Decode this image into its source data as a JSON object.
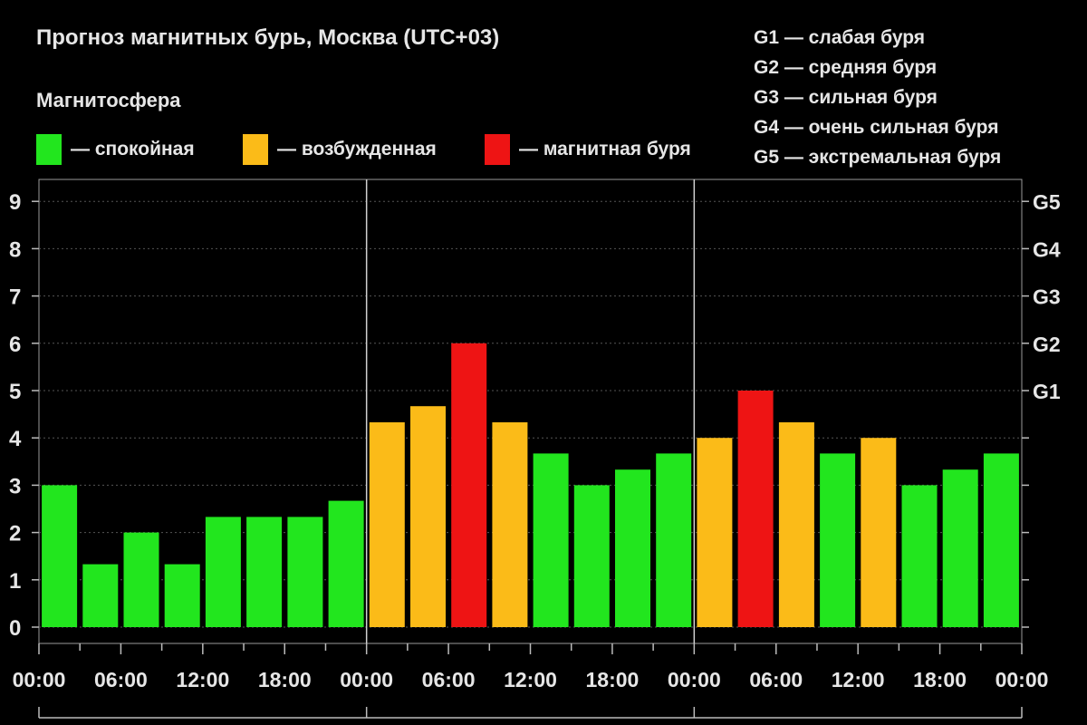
{
  "header": {
    "title": "Прогноз магнитных бурь, Москва (UTC+03)",
    "legend_title": "Магнитосфера"
  },
  "legend": [
    {
      "label": "— спокойная",
      "color": "#22e61e"
    },
    {
      "label": "— возбужденная",
      "color": "#fbbb18"
    },
    {
      "label": "— магнитная буря",
      "color": "#ee1414"
    }
  ],
  "g_scale": [
    {
      "label": "G1 — слабая буря"
    },
    {
      "label": "G2 — средняя буря"
    },
    {
      "label": "G3 — сильная буря"
    },
    {
      "label": "G4 — очень сильная буря"
    },
    {
      "label": "G5 — экстремальная буря"
    }
  ],
  "chart_data": {
    "type": "bar",
    "title": "Прогноз магнитных бурь, Москва (UTC+03)",
    "ylim": [
      0,
      9
    ],
    "y_ticks": [
      "0",
      "1",
      "2",
      "3",
      "4",
      "5",
      "6",
      "7",
      "8",
      "9"
    ],
    "right_ticks": [
      {
        "label": "G1",
        "value": 5
      },
      {
        "label": "G2",
        "value": 6
      },
      {
        "label": "G3",
        "value": 7
      },
      {
        "label": "G4",
        "value": 8
      },
      {
        "label": "G5",
        "value": 9
      }
    ],
    "x_tick_labels": [
      "00:00",
      "06:00",
      "12:00",
      "18:00",
      "00:00",
      "06:00",
      "12:00",
      "18:00",
      "00:00",
      "06:00",
      "12:00",
      "18:00",
      "00:00"
    ],
    "grid": true,
    "categories": [
      "00:00",
      "03:00",
      "06:00",
      "09:00",
      "12:00",
      "15:00",
      "18:00",
      "21:00",
      "00:00",
      "03:00",
      "06:00",
      "09:00",
      "12:00",
      "15:00",
      "18:00",
      "21:00",
      "00:00",
      "03:00",
      "06:00",
      "09:00",
      "12:00",
      "15:00",
      "18:00",
      "21:00"
    ],
    "values": [
      3,
      1.33,
      2,
      1.33,
      2.33,
      2.33,
      2.33,
      2.67,
      4.33,
      4.67,
      6,
      4.33,
      3.67,
      3,
      3.33,
      3.67,
      4,
      5,
      4.33,
      3.67,
      4,
      3,
      3.33,
      3.67
    ],
    "levels": [
      "calm",
      "calm",
      "calm",
      "calm",
      "calm",
      "calm",
      "calm",
      "calm",
      "excited",
      "excited",
      "storm",
      "excited",
      "calm",
      "calm",
      "calm",
      "calm",
      "excited",
      "storm",
      "excited",
      "calm",
      "excited",
      "calm",
      "calm",
      "calm"
    ],
    "colors": {
      "calm": "#22e61e",
      "excited": "#fbbb18",
      "storm": "#ee1414"
    }
  }
}
